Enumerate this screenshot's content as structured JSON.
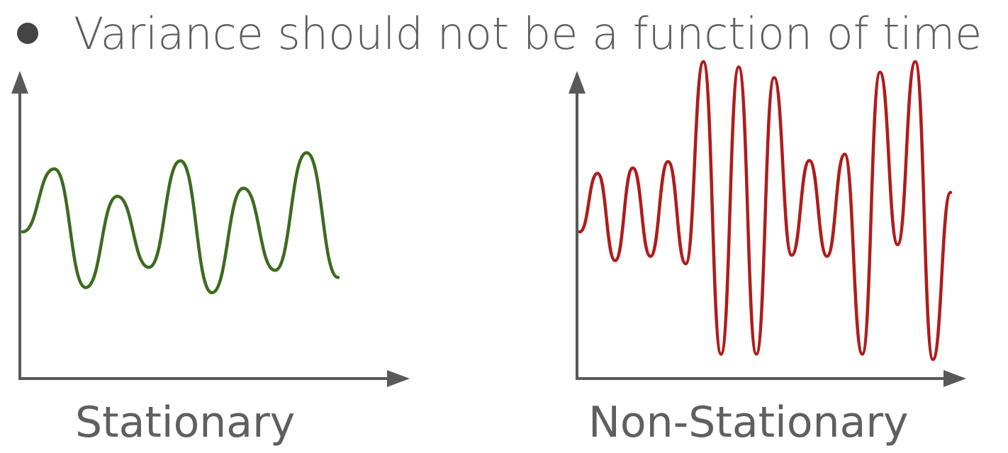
{
  "bullet": {
    "text": "Variance should not be a function of time"
  },
  "panels": {
    "left": {
      "caption": "Stationary",
      "line_color": "#3c6b1f",
      "series": [
        0.0,
        0.62,
        -0.55,
        0.35,
        -0.35,
        0.7,
        -0.6,
        0.43,
        -0.38,
        0.78,
        -0.45
      ]
    },
    "right": {
      "caption": "Non-Stationary",
      "line_color": "#b01c1c",
      "series": [
        0.0,
        0.55,
        -0.27,
        0.6,
        -0.23,
        0.66,
        -0.3,
        1.6,
        -1.15,
        1.55,
        -1.15,
        1.45,
        -0.22,
        0.67,
        -0.23,
        0.73,
        -1.15,
        1.5,
        -0.12,
        1.6,
        -1.2,
        0.37
      ]
    }
  },
  "axis_color": "#595959"
}
